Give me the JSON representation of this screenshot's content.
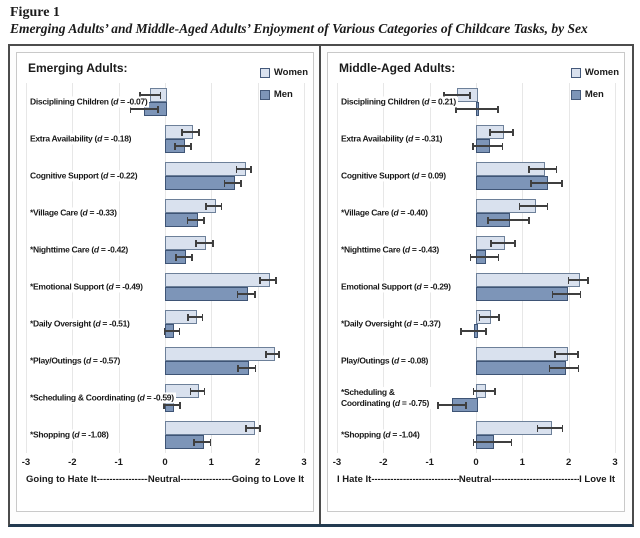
{
  "figure": {
    "label": "Figure 1",
    "title": "Emerging Adults’ and Middle-Aged Adults’ Enjoyment of Various Categories of Childcare Tasks, by Sex"
  },
  "colors": {
    "women_fill": "#d9e1ee",
    "women_border": "#6d8099",
    "men_fill": "#7d95b8",
    "men_border": "#3e5475",
    "error_bar": "#3f3f3f",
    "gridline": "#e7e7e7",
    "panel_border": "#c9c9c9",
    "outer_border": "#4c4c4c",
    "bottom_accent": "#223a50"
  },
  "chart_data": [
    {
      "type": "bar",
      "orientation": "horizontal",
      "title": "Emerging Adults:",
      "xlim": [
        -3,
        3
      ],
      "xticks": [
        "-3",
        "-2",
        "-1",
        "0",
        "1",
        "2",
        "3"
      ],
      "grid": true,
      "legend_position": "top-right",
      "axis_caption": {
        "left": "Going to Hate It ",
        "mid": "Neutral",
        "right": " Going to Love It",
        "leader": "--------------------------------------------"
      },
      "categories": [
        "Disciplining Children (d = -0.07)",
        "Extra Availability (d = -0.18)",
        "Cognitive Support (d = -0.22)",
        "*Village Care (d = -0.33)",
        "*Nighttime Care (d = -0.42)",
        "*Emotional Support (d = -0.49)",
        "*Daily Oversight (d = -0.51)",
        "*Play/Outings (d = -0.57)",
        "*Scheduling & Coordinating (d = -0.59)",
        "*Shopping (d = -1.08)"
      ],
      "series": [
        {
          "name": "Women",
          "values": [
            -0.32,
            0.55,
            1.7,
            1.05,
            0.85,
            2.22,
            0.65,
            2.32,
            0.7,
            1.9
          ],
          "errors": [
            0.22,
            0.18,
            0.16,
            0.17,
            0.18,
            0.17,
            0.16,
            0.14,
            0.15,
            0.15
          ]
        },
        {
          "name": "Men",
          "values": [
            -0.45,
            0.39,
            1.46,
            0.66,
            0.41,
            1.75,
            0.15,
            1.76,
            0.15,
            0.8
          ],
          "errors": [
            0.3,
            0.17,
            0.18,
            0.18,
            0.17,
            0.19,
            0.16,
            0.19,
            0.17,
            0.18
          ]
        }
      ]
    },
    {
      "type": "bar",
      "orientation": "horizontal",
      "title": "Middle-Aged Adults:",
      "xlim": [
        -3,
        3
      ],
      "xticks": [
        "-3",
        "-2",
        "-1",
        "0",
        "1",
        "2",
        "3"
      ],
      "grid": true,
      "legend_position": "top-right",
      "axis_caption": {
        "left": "I Hate It ",
        "mid": "Neutral",
        "right": " I Love It",
        "leader": "--------------------------------------------"
      },
      "categories": [
        "Disciplining Children (d = 0.21)",
        "Extra Availability (d = -0.31)",
        "Cognitive Support (d = 0.09)",
        "*Village Care (d = -0.40)",
        "*Nighttime Care (d = -0.43)",
        "Emotional Support (d = -0.29)",
        "*Daily Oversight (d = -0.37)",
        "Play/Outings (d = -0.08)",
        "*Scheduling &\nCoordinating (d = -0.75)",
        "*Shopping (d = -1.04)"
      ],
      "series": [
        {
          "name": "Women",
          "values": [
            -0.41,
            0.55,
            1.44,
            1.24,
            0.58,
            2.21,
            0.28,
            1.95,
            0.18,
            1.6
          ],
          "errors": [
            0.28,
            0.25,
            0.3,
            0.3,
            0.26,
            0.21,
            0.21,
            0.25,
            0.23,
            0.27
          ]
        },
        {
          "name": "Men",
          "values": [
            0.02,
            0.25,
            1.52,
            0.7,
            0.18,
            1.95,
            -0.05,
            1.9,
            -0.52,
            0.35
          ],
          "errors": [
            0.45,
            0.32,
            0.33,
            0.44,
            0.3,
            0.3,
            0.27,
            0.31,
            0.3,
            0.41
          ]
        }
      ]
    }
  ]
}
